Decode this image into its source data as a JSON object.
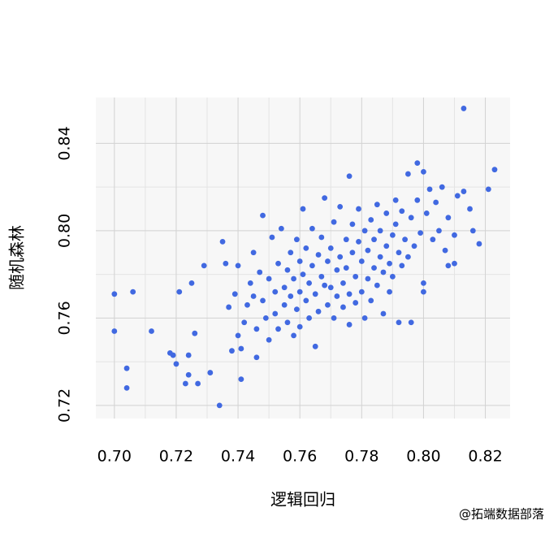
{
  "chart_data": {
    "type": "scatter",
    "xlabel": "逻辑回归",
    "ylabel": "随机森林",
    "watermark": "@拓端数据部落",
    "color": "#4169e1",
    "grid": true,
    "xlim": [
      0.694,
      0.828
    ],
    "ylim": [
      0.714,
      0.861
    ],
    "xticks": [
      {
        "value": 0.7,
        "label": "0.70"
      },
      0.72,
      0.74,
      0.76,
      0.78,
      {
        "value": 0.8,
        "label": "0.80"
      },
      0.82
    ],
    "yticks": [
      0.72,
      0.76,
      {
        "value": 0.8,
        "label": "0.80"
      },
      0.84
    ],
    "xminor": [
      0.71,
      0.73,
      0.75,
      0.77,
      0.79,
      0.81
    ],
    "yminor": [
      0.74,
      0.78,
      0.82
    ],
    "x": [
      0.7,
      0.7,
      0.706,
      0.704,
      0.704,
      0.712,
      0.718,
      0.719,
      0.72,
      0.721,
      0.723,
      0.724,
      0.724,
      0.725,
      0.726,
      0.727,
      0.729,
      0.731,
      0.734,
      0.735,
      0.813,
      0.823,
      0.821,
      0.818,
      0.798,
      0.8,
      0.81,
      0.808,
      0.8,
      0.8,
      0.796,
      0.776,
      0.736,
      0.737,
      0.738,
      0.739,
      0.74,
      0.74,
      0.741,
      0.741,
      0.742,
      0.743,
      0.744,
      0.745,
      0.745,
      0.746,
      0.746,
      0.747,
      0.748,
      0.748,
      0.749,
      0.75,
      0.75,
      0.751,
      0.752,
      0.752,
      0.753,
      0.753,
      0.754,
      0.755,
      0.755,
      0.756,
      0.756,
      0.757,
      0.757,
      0.758,
      0.758,
      0.759,
      0.759,
      0.76,
      0.76,
      0.76,
      0.761,
      0.761,
      0.762,
      0.762,
      0.763,
      0.763,
      0.764,
      0.764,
      0.765,
      0.765,
      0.766,
      0.766,
      0.767,
      0.767,
      0.768,
      0.768,
      0.769,
      0.769,
      0.77,
      0.77,
      0.771,
      0.771,
      0.772,
      0.772,
      0.773,
      0.773,
      0.774,
      0.774,
      0.775,
      0.775,
      0.776,
      0.776,
      0.777,
      0.777,
      0.778,
      0.778,
      0.779,
      0.779,
      0.78,
      0.78,
      0.781,
      0.781,
      0.782,
      0.782,
      0.783,
      0.783,
      0.784,
      0.784,
      0.785,
      0.785,
      0.786,
      0.786,
      0.787,
      0.787,
      0.788,
      0.788,
      0.789,
      0.789,
      0.79,
      0.79,
      0.791,
      0.791,
      0.792,
      0.792,
      0.793,
      0.793,
      0.794,
      0.795,
      0.795,
      0.796,
      0.797,
      0.798,
      0.799,
      0.801,
      0.802,
      0.803,
      0.804,
      0.805,
      0.806,
      0.807,
      0.808,
      0.81,
      0.811,
      0.813,
      0.815,
      0.816
    ],
    "y": [
      0.771,
      0.754,
      0.772,
      0.737,
      0.728,
      0.754,
      0.744,
      0.743,
      0.739,
      0.772,
      0.73,
      0.743,
      0.734,
      0.776,
      0.753,
      0.73,
      0.784,
      0.735,
      0.72,
      0.795,
      0.856,
      0.828,
      0.819,
      0.794,
      0.831,
      0.827,
      0.785,
      0.784,
      0.776,
      0.772,
      0.758,
      0.825,
      0.785,
      0.765,
      0.745,
      0.771,
      0.752,
      0.784,
      0.732,
      0.746,
      0.758,
      0.766,
      0.776,
      0.79,
      0.77,
      0.755,
      0.742,
      0.781,
      0.768,
      0.807,
      0.76,
      0.778,
      0.75,
      0.797,
      0.772,
      0.762,
      0.785,
      0.755,
      0.801,
      0.774,
      0.766,
      0.782,
      0.758,
      0.79,
      0.77,
      0.752,
      0.778,
      0.796,
      0.764,
      0.786,
      0.772,
      0.756,
      0.81,
      0.78,
      0.768,
      0.792,
      0.76,
      0.776,
      0.801,
      0.784,
      0.771,
      0.747,
      0.789,
      0.763,
      0.797,
      0.779,
      0.775,
      0.815,
      0.786,
      0.766,
      0.792,
      0.774,
      0.76,
      0.804,
      0.782,
      0.77,
      0.811,
      0.788,
      0.776,
      0.765,
      0.796,
      0.783,
      0.771,
      0.757,
      0.803,
      0.79,
      0.779,
      0.767,
      0.81,
      0.795,
      0.786,
      0.772,
      0.8,
      0.76,
      0.791,
      0.778,
      0.805,
      0.768,
      0.796,
      0.783,
      0.812,
      0.775,
      0.8,
      0.788,
      0.781,
      0.762,
      0.808,
      0.793,
      0.785,
      0.772,
      0.798,
      0.779,
      0.814,
      0.803,
      0.79,
      0.758,
      0.809,
      0.784,
      0.796,
      0.826,
      0.788,
      0.806,
      0.793,
      0.814,
      0.799,
      0.808,
      0.819,
      0.796,
      0.813,
      0.8,
      0.82,
      0.791,
      0.806,
      0.798,
      0.816,
      0.818,
      0.81,
      0.8
    ]
  }
}
